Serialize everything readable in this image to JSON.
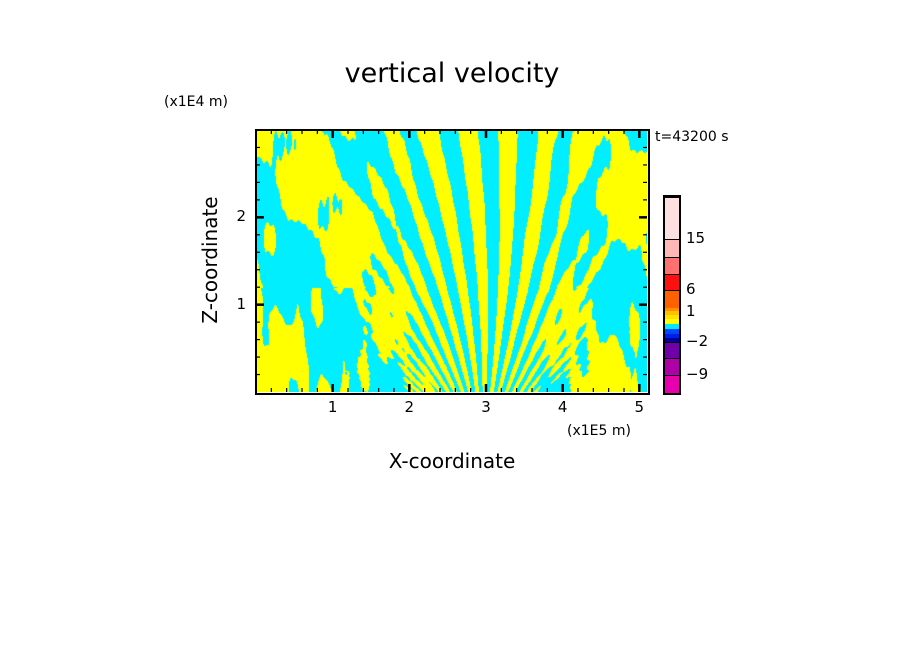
{
  "chart_data": {
    "type": "heatmap",
    "title": "vertical velocity",
    "xlabel": "X-coordinate",
    "ylabel": "Z-coordinate",
    "x_unit": "(x1E5 m)",
    "y_unit": "(x1E4 m)",
    "time_label": "t=43200 s",
    "xlim": [
      0,
      5.1
    ],
    "ylim": [
      0,
      3
    ],
    "xticks": [
      "1",
      "2",
      "3",
      "4",
      "5"
    ],
    "xtick_values": [
      1,
      2,
      3,
      4,
      5
    ],
    "yticks": [
      "1",
      "2"
    ],
    "ytick_values": [
      1,
      2
    ],
    "field_description_colors": {
      "positive_small": "#ffff00",
      "negative_small": "#00eeff"
    },
    "colorbar": {
      "levels": [
        -12,
        -9,
        -6,
        -3,
        -2,
        -1,
        -0.5,
        0,
        0.5,
        1,
        2,
        3,
        6,
        9,
        12,
        15,
        24
      ],
      "colors": [
        "#e800b0",
        "#b000a8",
        "#7000a8",
        "#0000a0",
        "#0020e0",
        "#0048ff",
        "#00e8ff",
        "#ffff00",
        "#ffe000",
        "#ffc000",
        "#ff9000",
        "#ff6000",
        "#ff1010",
        "#ff7070",
        "#ffb8b8",
        "#ffe0e0"
      ],
      "tick_labels": [
        "15",
        "6",
        "1",
        "−2",
        "−9"
      ],
      "tick_values": [
        15,
        6,
        1,
        -2,
        -9
      ]
    }
  }
}
